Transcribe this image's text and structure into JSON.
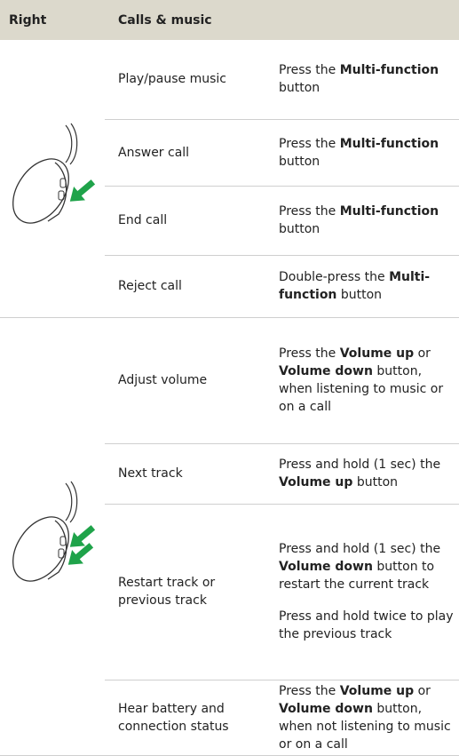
{
  "header": {
    "col1": "Right",
    "col2": "Calls & music"
  },
  "groups": [
    {
      "rows": [
        {
          "action": "Play/pause music",
          "description": [
            [
              {
                "text": "Press the "
              },
              {
                "text": "Multi-function",
                "bold": true
              },
              {
                "text": " button"
              }
            ]
          ]
        },
        {
          "action": "Answer call",
          "description": [
            [
              {
                "text": "Press the "
              },
              {
                "text": "Multi-function",
                "bold": true
              },
              {
                "text": " button"
              }
            ]
          ]
        },
        {
          "action": "End call",
          "description": [
            [
              {
                "text": "Press the "
              },
              {
                "text": "Multi-function",
                "bold": true
              },
              {
                "text": " button"
              }
            ]
          ]
        },
        {
          "action": "Reject call",
          "description": [
            [
              {
                "text": "Double-press the "
              },
              {
                "text": "Multi-function",
                "bold": true
              },
              {
                "text": " button"
              }
            ]
          ]
        }
      ]
    },
    {
      "rows": [
        {
          "action": "Adjust volume",
          "description": [
            [
              {
                "text": "Press the "
              },
              {
                "text": "Volume up",
                "bold": true
              },
              {
                "text": " or "
              },
              {
                "text": "Volume down",
                "bold": true
              },
              {
                "text": " button, when listening to music or on a call"
              }
            ]
          ]
        },
        {
          "action": "Next track",
          "description": [
            [
              {
                "text": "Press and hold (1 sec) the "
              },
              {
                "text": "Volume up",
                "bold": true
              },
              {
                "text": " button"
              }
            ]
          ]
        },
        {
          "action": "Restart track or previous track",
          "description": [
            [
              {
                "text": "Press and hold (1 sec) the "
              },
              {
                "text": "Volume down",
                "bold": true
              },
              {
                "text": " button to restart the current track"
              }
            ],
            [
              {
                "text": "Press and hold twice to play the previous track"
              }
            ]
          ]
        },
        {
          "action": "Hear battery and connection status",
          "description": [
            [
              {
                "text": "Press the "
              },
              {
                "text": "Volume up",
                "bold": true
              },
              {
                "text": " or "
              },
              {
                "text": "Volume down",
                "bold": true
              },
              {
                "text": " button, when not listening to music or on a call"
              }
            ]
          ]
        }
      ]
    }
  ]
}
